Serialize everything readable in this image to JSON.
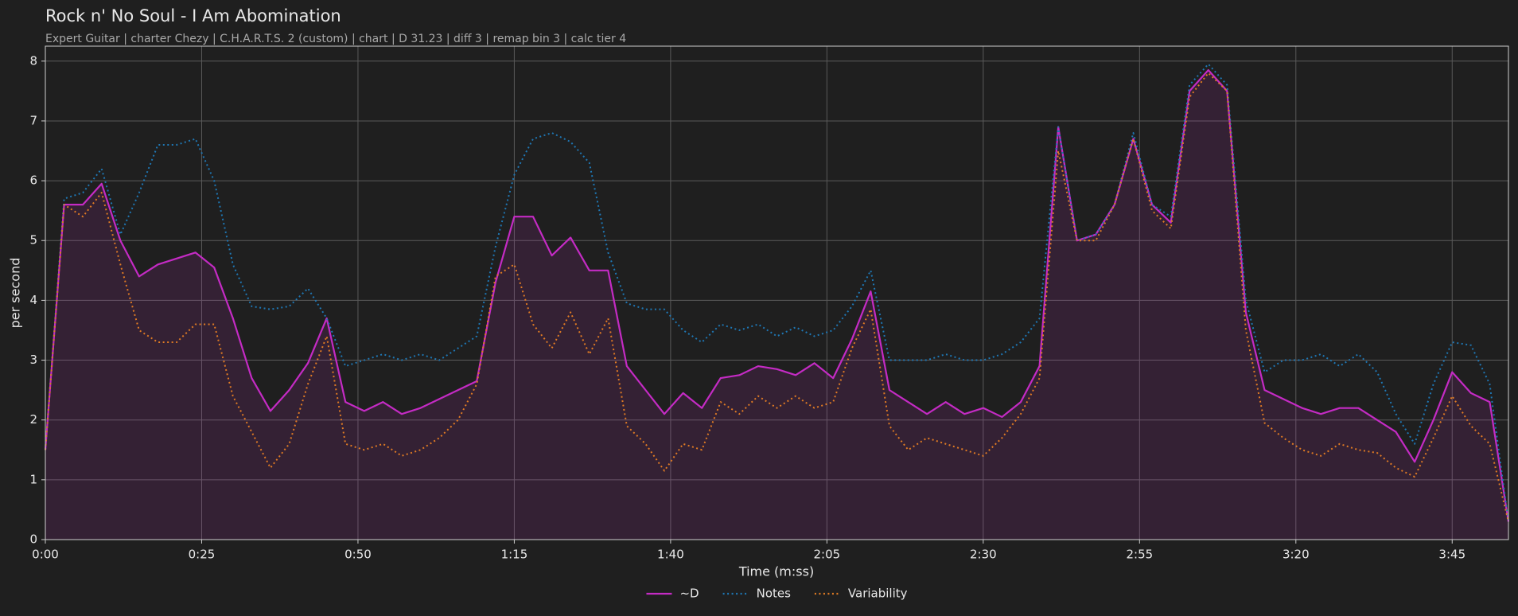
{
  "chart_data": {
    "type": "line",
    "title": "Rock n' No Soul - I Am Abomination",
    "subtitle": "Expert Guitar  |  charter Chezy  |  C.H.A.R.T.S. 2 (custom)  |  chart  |  D 31.23  |  diff 3  |  remap bin 3  |  calc tier 4",
    "x_label": "Time (m:ss)",
    "y_label": "per second",
    "x": [
      0,
      3,
      6,
      9,
      12,
      15,
      18,
      21,
      24,
      27,
      30,
      33,
      36,
      39,
      42,
      45,
      48,
      51,
      54,
      57,
      60,
      63,
      66,
      69,
      72,
      75,
      78,
      81,
      84,
      87,
      90,
      93,
      96,
      99,
      102,
      105,
      108,
      111,
      114,
      117,
      120,
      123,
      126,
      129,
      132,
      135,
      138,
      141,
      144,
      147,
      150,
      153,
      156,
      159,
      162,
      165,
      168,
      171,
      174,
      177,
      180,
      183,
      186,
      189,
      192,
      195,
      198,
      201,
      204,
      207,
      210,
      213,
      216,
      219,
      222,
      225,
      228,
      231,
      234
    ],
    "series": [
      {
        "name": "~D",
        "color": "#c42bc4",
        "style": "solid",
        "fill": true,
        "values": [
          1.5,
          5.6,
          5.6,
          5.95,
          5.0,
          4.4,
          4.6,
          4.7,
          4.8,
          4.55,
          3.7,
          2.7,
          2.15,
          2.5,
          2.95,
          3.7,
          2.3,
          2.15,
          2.3,
          2.1,
          2.2,
          2.35,
          2.5,
          2.65,
          4.3,
          5.4,
          5.4,
          4.75,
          5.05,
          4.5,
          4.5,
          2.9,
          2.5,
          2.1,
          2.45,
          2.2,
          2.7,
          2.75,
          2.9,
          2.85,
          2.75,
          2.95,
          2.7,
          3.35,
          4.15,
          2.5,
          2.3,
          2.1,
          2.3,
          2.1,
          2.2,
          2.05,
          2.3,
          2.9,
          6.9,
          5.0,
          5.1,
          5.6,
          6.7,
          5.6,
          5.3,
          7.5,
          7.85,
          7.5,
          3.8,
          2.5,
          2.35,
          2.2,
          2.1,
          2.2,
          2.2,
          2.0,
          1.8,
          1.3,
          2.0,
          2.8,
          2.45,
          2.3,
          0.3
        ]
      },
      {
        "name": "Notes",
        "color": "#1f77b4",
        "style": "dotted",
        "fill": false,
        "values": [
          1.5,
          5.7,
          5.8,
          6.2,
          5.1,
          5.8,
          6.6,
          6.6,
          6.7,
          6.0,
          4.6,
          3.9,
          3.85,
          3.9,
          4.2,
          3.7,
          2.9,
          3.0,
          3.1,
          3.0,
          3.1,
          3.0,
          3.2,
          3.4,
          4.9,
          6.1,
          6.7,
          6.8,
          6.65,
          6.3,
          4.8,
          3.95,
          3.85,
          3.85,
          3.5,
          3.3,
          3.6,
          3.5,
          3.6,
          3.4,
          3.55,
          3.4,
          3.5,
          3.9,
          4.5,
          3.0,
          3.0,
          3.0,
          3.1,
          3.0,
          3.0,
          3.1,
          3.3,
          3.7,
          6.9,
          5.0,
          5.1,
          5.6,
          6.8,
          5.6,
          5.4,
          7.6,
          7.95,
          7.6,
          4.0,
          2.8,
          3.0,
          3.0,
          3.1,
          2.9,
          3.1,
          2.8,
          2.1,
          1.6,
          2.6,
          3.3,
          3.25,
          2.6,
          0.3
        ]
      },
      {
        "name": "Variability",
        "color": "#e07b24",
        "style": "dotted",
        "fill": false,
        "values": [
          1.5,
          5.6,
          5.4,
          5.8,
          4.6,
          3.5,
          3.3,
          3.3,
          3.6,
          3.6,
          2.4,
          1.8,
          1.2,
          1.6,
          2.6,
          3.4,
          1.6,
          1.5,
          1.6,
          1.4,
          1.5,
          1.7,
          2.0,
          2.6,
          4.4,
          4.6,
          3.6,
          3.2,
          3.8,
          3.1,
          3.7,
          1.9,
          1.6,
          1.15,
          1.6,
          1.5,
          2.3,
          2.1,
          2.4,
          2.2,
          2.4,
          2.2,
          2.3,
          3.2,
          3.85,
          1.9,
          1.5,
          1.7,
          1.6,
          1.5,
          1.4,
          1.7,
          2.1,
          2.7,
          6.5,
          5.0,
          5.0,
          5.6,
          6.7,
          5.5,
          5.2,
          7.4,
          7.8,
          7.5,
          3.5,
          1.95,
          1.7,
          1.5,
          1.4,
          1.6,
          1.5,
          1.45,
          1.2,
          1.05,
          1.7,
          2.4,
          1.9,
          1.6,
          0.3
        ]
      }
    ],
    "xlim": [
      0,
      234
    ],
    "xticks": [
      {
        "value": 0,
        "label": "0:00"
      },
      {
        "value": 25,
        "label": "0:25"
      },
      {
        "value": 50,
        "label": "0:50"
      },
      {
        "value": 75,
        "label": "1:15"
      },
      {
        "value": 100,
        "label": "1:40"
      },
      {
        "value": 125,
        "label": "2:05"
      },
      {
        "value": 150,
        "label": "2:30"
      },
      {
        "value": 175,
        "label": "2:55"
      },
      {
        "value": 200,
        "label": "3:20"
      },
      {
        "value": 225,
        "label": "3:45"
      }
    ],
    "ylim": [
      0,
      8.25
    ],
    "yticks": [
      0,
      1,
      2,
      3,
      4,
      5,
      6,
      7,
      8
    ],
    "grid": true,
    "legend": "bottom"
  }
}
